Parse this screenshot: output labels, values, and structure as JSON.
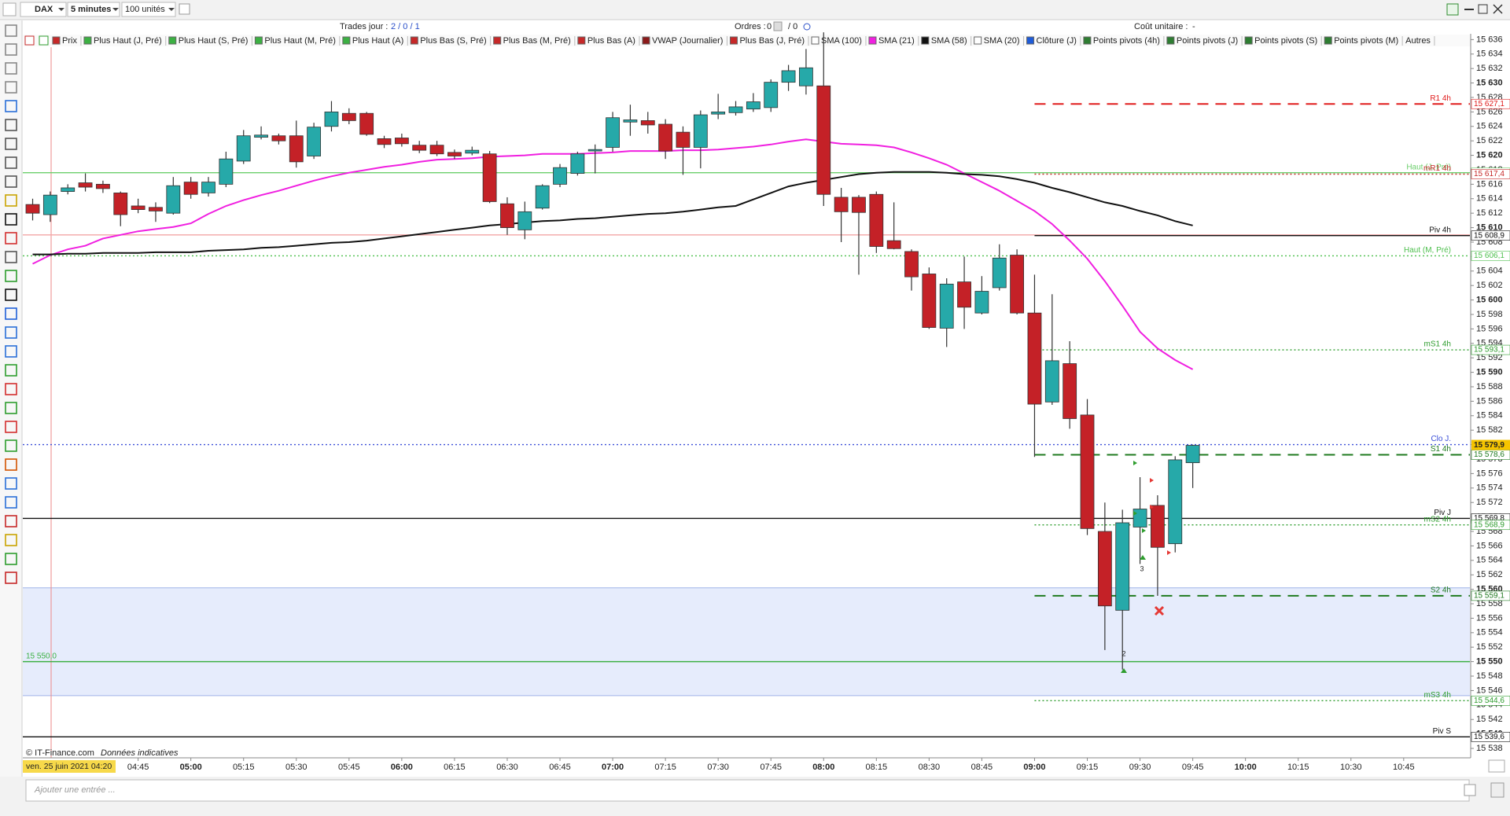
{
  "toolbar": {
    "symbol": "DAX",
    "interval": "5 minutes",
    "quantity": "100 unités"
  },
  "status": {
    "trades": "Trades jour :",
    "trades_value": "2 / 0 / 1",
    "orders": "Ordres :",
    "orders_value": "0",
    "orders_value2": "/ 0",
    "cost": "Coût unitaire :",
    "cost_value": "-"
  },
  "indicators": [
    {
      "name": "Prix",
      "color": "#c62828"
    },
    {
      "name": "Plus Haut (J, Pré)",
      "color": "#3cb043"
    },
    {
      "name": "Plus Haut (S, Pré)",
      "color": "#3cb043"
    },
    {
      "name": "Plus Haut (M, Pré)",
      "color": "#3cb043"
    },
    {
      "name": "Plus Haut (A)",
      "color": "#3cb043"
    },
    {
      "name": "Plus Bas (S, Pré)",
      "color": "#c62828"
    },
    {
      "name": "Plus Bas (M, Pré)",
      "color": "#c62828"
    },
    {
      "name": "Plus Bas (A)",
      "color": "#c62828"
    },
    {
      "name": "VWAP (Journalier)",
      "color": "#8b1a1a"
    },
    {
      "name": "Plus Bas (J, Pré)",
      "color": "#c62828"
    },
    {
      "name": "SMA (100)",
      "color": "#ffffff"
    },
    {
      "name": "SMA (20)",
      "color": "#ffffff"
    },
    {
      "name": "Clôture (J)",
      "color": "#1e5bd8"
    },
    {
      "name": "Points pivots (4h)",
      "color": "#2e7d32"
    },
    {
      "name": "Points pivots (J)",
      "color": "#2e7d32"
    },
    {
      "name": "Points pivots (S)",
      "color": "#2e7d32"
    },
    {
      "name": "Points pivots (M)",
      "color": "#2e7d32"
    },
    {
      "name": "Autres",
      "color": null
    }
  ],
  "footer": {
    "copyright": "© IT-Finance.com",
    "note": "Données indicatives",
    "cursor_date": "ven. 25 juin 2021 04:20",
    "input_placeholder": "Ajouter une entrée ..."
  },
  "chart_data": {
    "type": "candlestick",
    "up_color": "#26a9a9",
    "down_color": "#c42127",
    "categories": [
      null,
      null,
      null,
      null,
      null,
      null,
      "04:45",
      null,
      null,
      "05:00",
      null,
      null,
      "05:15",
      null,
      null,
      "05:30",
      null,
      null,
      "05:45",
      null,
      null,
      "06:00",
      null,
      null,
      "06:15",
      null,
      null,
      "06:30",
      null,
      null,
      "06:45",
      null,
      null,
      "07:00",
      null,
      null,
      "07:15",
      null,
      null,
      "07:30",
      null,
      null,
      "07:45",
      null,
      null,
      "08:00",
      null,
      null,
      "08:15",
      null,
      null,
      "08:30",
      null,
      null,
      "08:45",
      null,
      null,
      "09:00",
      null,
      null,
      "09:15",
      null,
      null,
      "09:30",
      null,
      null,
      "09:45",
      null,
      null,
      "10:00",
      null,
      null,
      "10:15",
      null,
      null,
      "10:30",
      null,
      null,
      "10:45"
    ],
    "open": [
      15613.2,
      15611.8,
      15615.0,
      15616.2,
      15616.0,
      15614.8,
      15613.0,
      15612.8,
      15612.0,
      15616.3,
      15614.8,
      15616.0,
      15619.2,
      15622.5,
      15622.7,
      15622.7,
      15619.9,
      15624.0,
      15625.8,
      15625.8,
      15622.3,
      15622.4,
      15621.4,
      15621.4,
      15620.4,
      15620.3,
      15620.2,
      15613.3,
      15609.7,
      15612.7,
      15616.0,
      15617.5,
      15620.6,
      15621.1,
      15624.6,
      15624.8,
      15624.3,
      15623.2,
      15621.1,
      15625.7,
      15625.9,
      15626.4,
      15626.6,
      15630.1,
      15629.6,
      15629.6,
      15614.2,
      15614.2,
      15614.6,
      15608.2,
      15606.7,
      15603.6,
      15596.1,
      15602.5,
      15598.2,
      15601.7,
      15606.2,
      15598.2,
      15585.9,
      15591.2,
      15584.1,
      15568.0,
      15557.1,
      15568.6,
      15571.6,
      15566.3,
      15577.5,
      null,
      null,
      null,
      null,
      null,
      null,
      null,
      null,
      null,
      null,
      null,
      null
    ],
    "high": [
      15614.0,
      15615.0,
      15616.0,
      15617.5,
      15616.5,
      15615.0,
      15614.0,
      15613.5,
      15617.0,
      15617.0,
      15617.0,
      15620.5,
      15623.5,
      15624.0,
      15623.0,
      15624.8,
      15624.5,
      15627.5,
      15626.5,
      15626.0,
      15622.7,
      15623.0,
      15622.0,
      15622.0,
      15620.8,
      15621.2,
      15620.6,
      15614.2,
      15613.6,
      15616.0,
      15618.8,
      15620.5,
      15621.5,
      15626.0,
      15627.0,
      15626.0,
      15625.0,
      15624.0,
      15626.2,
      15628.5,
      15627.5,
      15628.6,
      15630.5,
      15632.5,
      15634.7,
      15637.0,
      15615.5,
      15614.5,
      15615.0,
      15613.5,
      15607.0,
      15604.5,
      15603.0,
      15606.0,
      15603.3,
      15607.7,
      15607.0,
      15603.5,
      15600.8,
      15594.3,
      15586.3,
      15572.0,
      15571.0,
      15575.5,
      15573.0,
      15578.4,
      15580.0,
      null,
      null,
      null,
      null,
      null,
      null,
      null,
      null,
      null,
      null,
      null,
      null
    ],
    "low": [
      15611.0,
      15610.8,
      15614.6,
      15615.0,
      15614.8,
      15610.2,
      15612.0,
      15610.8,
      15611.8,
      15614.0,
      15614.3,
      15615.6,
      15618.8,
      15622.2,
      15621.5,
      15618.3,
      15619.5,
      15623.3,
      15624.3,
      15622.7,
      15621.0,
      15621.2,
      15620.3,
      15619.9,
      15619.5,
      15620.0,
      15613.4,
      15609.0,
      15608.4,
      15612.5,
      15615.6,
      15617.2,
      15617.5,
      15620.5,
      15622.7,
      15623.0,
      15619.5,
      15617.3,
      15618.2,
      15625.0,
      15625.5,
      15626.0,
      15626.0,
      15628.9,
      15628.4,
      15613.0,
      15608.0,
      15603.5,
      15606.5,
      15607.0,
      15601.3,
      15596.0,
      15593.5,
      15596.0,
      15598.0,
      15601.3,
      15598.0,
      15578.3,
      15585.5,
      15582.2,
      15567.5,
      15551.6,
      15548.9,
      15563.5,
      15559.1,
      15565.1,
      15574.0,
      null,
      null,
      null,
      null,
      null,
      null,
      null,
      null,
      null,
      null,
      null,
      null
    ],
    "close": [
      15612.0,
      15614.5,
      15615.5,
      15615.6,
      15615.4,
      15611.8,
      15612.5,
      15612.3,
      15615.8,
      15614.6,
      15616.3,
      15619.5,
      15622.7,
      15622.8,
      15622.0,
      15619.1,
      15623.9,
      15626.0,
      15624.8,
      15622.9,
      15621.5,
      15621.6,
      15620.7,
      15620.2,
      15619.9,
      15620.7,
      15613.6,
      15610.0,
      15612.2,
      15615.8,
      15618.3,
      15620.2,
      15620.8,
      15625.2,
      15624.9,
      15624.2,
      15620.6,
      15621.1,
      15625.6,
      15626.0,
      15626.7,
      15627.4,
      15630.1,
      15631.7,
      15632.1,
      15614.6,
      15612.2,
      15612.1,
      15607.4,
      15607.1,
      15603.2,
      15596.2,
      15602.2,
      15599.0,
      15601.2,
      15605.8,
      15598.2,
      15585.6,
      15591.6,
      15583.6,
      15568.4,
      15557.7,
      15569.2,
      15571.1,
      15565.8,
      15577.9,
      15579.9,
      null,
      null,
      null,
      null,
      null,
      null,
      null,
      null,
      null,
      null,
      null,
      null
    ],
    "series": [
      {
        "name": "SMA (21)",
        "color": "#f01fe0",
        "values": [
          15605.0,
          15606.2,
          15607.0,
          15607.5,
          15608.5,
          15609.0,
          15609.5,
          15609.8,
          15610.1,
          15610.6,
          15611.9,
          15613.0,
          15613.8,
          15614.5,
          15615.1,
          15615.8,
          15616.5,
          15617.1,
          15617.6,
          15618.0,
          15618.4,
          15618.7,
          15619.1,
          15619.4,
          15619.5,
          15619.6,
          15619.8,
          15619.9,
          15620.0,
          15620.2,
          15620.2,
          15620.2,
          15620.3,
          15620.4,
          15620.6,
          15620.6,
          15620.6,
          15620.7,
          15620.7,
          15620.8,
          15621.0,
          15621.2,
          15621.5,
          15621.9,
          15622.2,
          15621.9,
          15621.6,
          15621.5,
          15621.4,
          15621.1,
          15620.4,
          15619.6,
          15618.7,
          15617.5,
          15616.3,
          15615.1,
          15613.7,
          15612.3,
          15610.5,
          15608.2,
          15605.7,
          15602.6,
          15599.2,
          15595.6,
          15593.3,
          15591.7,
          15590.4,
          null,
          null,
          null,
          null,
          null,
          null,
          null,
          null,
          null,
          null,
          null,
          null
        ]
      },
      {
        "name": "SMA (58)",
        "color": "#111111",
        "values": [
          15606.3,
          15606.3,
          15606.4,
          15606.4,
          15606.5,
          15606.5,
          15606.5,
          15606.6,
          15606.6,
          15606.6,
          15606.8,
          15606.9,
          15607.0,
          15607.2,
          15607.3,
          15607.5,
          15607.7,
          15607.9,
          15608.0,
          15608.2,
          15608.5,
          15608.8,
          15609.1,
          15609.4,
          15609.7,
          15610.0,
          15610.3,
          15610.5,
          15610.7,
          15610.9,
          15611.0,
          15611.2,
          15611.3,
          15611.5,
          15611.7,
          15611.9,
          15612.0,
          15612.2,
          15612.5,
          15612.8,
          15613.0,
          15613.9,
          15614.8,
          15615.7,
          15616.2,
          15616.6,
          15617.0,
          15617.4,
          15617.6,
          15617.7,
          15617.7,
          15617.7,
          15617.6,
          15617.4,
          15617.3,
          15617.1,
          15616.7,
          15616.2,
          15615.5,
          15614.9,
          15614.2,
          15613.5,
          15613.0,
          15612.3,
          15611.7,
          15610.9,
          15610.3,
          null,
          null,
          null,
          null,
          null,
          null,
          null,
          null,
          null,
          null,
          null,
          null
        ]
      }
    ],
    "zone": {
      "range": [
        15545.3,
        15560.2
      ],
      "color": "#e6ecfc",
      "edge": "#9fb3e8"
    },
    "levels": [
      {
        "label": "R1 4h",
        "value": 15627.1,
        "price_label": "15 627,1",
        "color": "#e01b1b",
        "style": "dash",
        "from": "09:00"
      },
      {
        "label": "Haut (J, Pré)",
        "value": 15617.6,
        "price_label": "15 617,6",
        "color": "#6ccf6c",
        "style": "solid"
      },
      {
        "label": "mR1 4h",
        "value": 15617.4,
        "price_label": "15 617,4",
        "color": "#c62828",
        "style": "dot",
        "from": "09:00"
      },
      {
        "value": 15609.0,
        "color": "#f3a6a6",
        "style": "solid"
      },
      {
        "label": "Piv 4h",
        "value": 15608.9,
        "price_label": "15 608,9",
        "color": "#111111",
        "style": "solid",
        "from": "09:00"
      },
      {
        "label": "Haut (M, Pré)",
        "value": 15606.1,
        "price_label": "15 606,1",
        "color": "#4cbf4c",
        "style": "dot"
      },
      {
        "label": "mS1 4h",
        "value": 15593.1,
        "price_label": "15 593,1",
        "color": "#2e9d2e",
        "style": "dot",
        "from": "09:00"
      },
      {
        "label": "Clo J.",
        "value": 15580.0,
        "color": "#3b4fd8",
        "style": "dot"
      },
      {
        "label": "S1 4h",
        "value": 15578.6,
        "price_label": "15 578,6",
        "color": "#1f7a1f",
        "style": "dash",
        "from": "09:00"
      },
      {
        "label": "Piv J",
        "value": 15569.8,
        "price_label": "15 569,8",
        "color": "#111111",
        "style": "solid"
      },
      {
        "label": "mS2 4h",
        "value": 15568.9,
        "price_label": "15 568,9",
        "color": "#2e9d2e",
        "style": "dot",
        "from": "09:00"
      },
      {
        "label": "S2 4h",
        "value": 15559.1,
        "price_label": "15 559,1",
        "color": "#1f7a1f",
        "style": "dash",
        "from": "09:00"
      },
      {
        "value": 15550.0,
        "left_label": "15 550,0",
        "color": "#3cb043",
        "style": "solid"
      },
      {
        "label": "mS3 4h",
        "value": 15544.6,
        "price_label": "15 544,6",
        "color": "#2e9d2e",
        "style": "dot",
        "from": "09:00"
      },
      {
        "label": "Piv S",
        "value": 15539.6,
        "price_label": "15 539,6",
        "color": "#111111",
        "style": "solid"
      }
    ],
    "last_price": {
      "value": 15579.9,
      "label": "15 579,9",
      "color": "#f5c400"
    },
    "annotations": [
      "2",
      "3"
    ],
    "ylim": [
      15536.7,
      15636.8
    ],
    "yticks": [
      {
        "value": 15538,
        "label": "15 538"
      },
      {
        "value": 15540,
        "label": "15 540"
      },
      {
        "value": 15542,
        "label": "15 542"
      },
      {
        "value": 15544,
        "label": "15 544"
      },
      {
        "value": 15546,
        "label": "15 546"
      },
      {
        "value": 15548,
        "label": "15 548"
      },
      {
        "value": 15550,
        "label": "15 550"
      },
      {
        "value": 15552,
        "label": "15 552"
      },
      {
        "value": 15554,
        "label": "15 554"
      },
      {
        "value": 15556,
        "label": "15 556"
      },
      {
        "value": 15558,
        "label": "15 558"
      },
      {
        "value": 15560,
        "label": "15 560"
      },
      {
        "value": 15562,
        "label": "15 562"
      },
      {
        "value": 15564,
        "label": "15 564"
      },
      {
        "value": 15566,
        "label": "15 566"
      },
      {
        "value": 15568,
        "label": "15 568"
      },
      {
        "value": 15570,
        "label": "15 570"
      },
      {
        "value": 15572,
        "label": "15 572"
      },
      {
        "value": 15574,
        "label": "15 574"
      },
      {
        "value": 15576,
        "label": "15 576"
      },
      {
        "value": 15578,
        "label": "15 578"
      },
      {
        "value": 15580,
        "label": "15 580"
      },
      {
        "value": 15582,
        "label": "15 582"
      },
      {
        "value": 15584,
        "label": "15 584"
      },
      {
        "value": 15586,
        "label": "15 586"
      },
      {
        "value": 15588,
        "label": "15 588"
      },
      {
        "value": 15590,
        "label": "15 590"
      },
      {
        "value": 15592,
        "label": "15 592"
      },
      {
        "value": 15594,
        "label": "15 594"
      },
      {
        "value": 15596,
        "label": "15 596"
      },
      {
        "value": 15598,
        "label": "15 598"
      },
      {
        "value": 15600,
        "label": "15 600"
      },
      {
        "value": 15602,
        "label": "15 602"
      },
      {
        "value": 15604,
        "label": "15 604"
      },
      {
        "value": 15606,
        "label": "15 606"
      },
      {
        "value": 15608,
        "label": "15 608"
      },
      {
        "value": 15610,
        "label": "15 610"
      },
      {
        "value": 15612,
        "label": "15 612"
      },
      {
        "value": 15614,
        "label": "15 614"
      },
      {
        "value": 15616,
        "label": "15 616"
      },
      {
        "value": 15618,
        "label": "15 618"
      },
      {
        "value": 15620,
        "label": "15 620"
      },
      {
        "value": 15622,
        "label": "15 622"
      },
      {
        "value": 15624,
        "label": "15 624"
      },
      {
        "value": 15626,
        "label": "15 626"
      },
      {
        "value": 15628,
        "label": "15 628"
      },
      {
        "value": 15630,
        "label": "15 630"
      },
      {
        "value": 15632,
        "label": "15 632"
      },
      {
        "value": 15634,
        "label": "15 634"
      },
      {
        "value": 15636,
        "label": "15 636"
      }
    ]
  }
}
